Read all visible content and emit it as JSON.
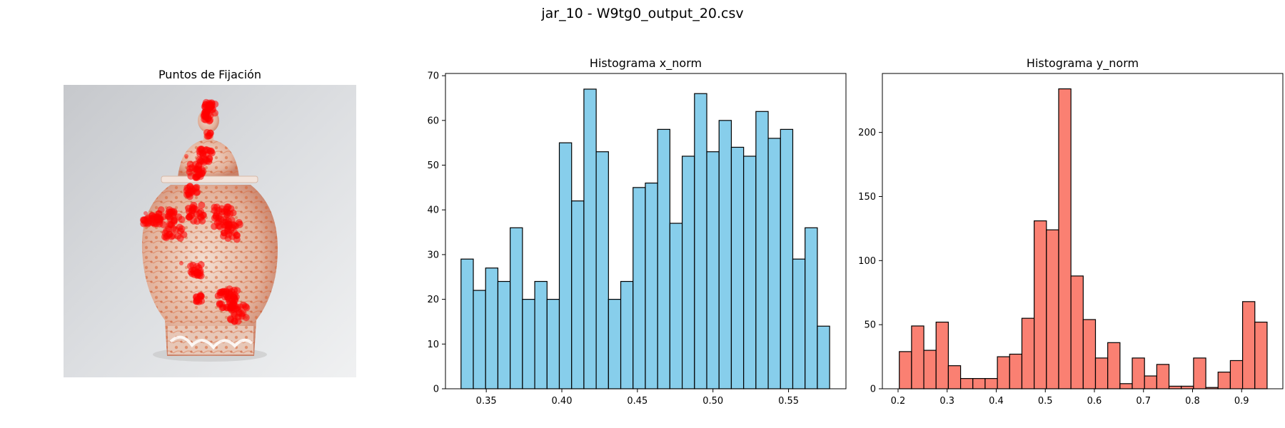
{
  "figure": {
    "suptitle": "jar_10 - W9tg0_output_20.csv"
  },
  "image_panel": {
    "title": "Puntos de Fijación",
    "fixation_color": "#ff0000",
    "jar_colors": {
      "background": "#d8dadd",
      "body": "#e9c6b4",
      "pattern": "#d9622f"
    }
  },
  "chart_data": [
    {
      "type": "bar",
      "title": "Histograma x_norm",
      "xlabel": "",
      "ylabel": "",
      "color": "#87ceeb",
      "edgecolor": "#000000",
      "xlim": [
        0.323,
        0.588
      ],
      "ylim": [
        0,
        70.5
      ],
      "bin_start": 0.3333,
      "bin_width": 0.00813,
      "values": [
        29,
        22,
        27,
        24,
        36,
        20,
        24,
        20,
        55,
        42,
        67,
        53,
        20,
        24,
        45,
        46,
        58,
        37,
        52,
        66,
        53,
        60,
        54,
        52,
        62,
        56,
        58,
        29,
        36,
        14
      ],
      "xticks": [
        0.35,
        0.4,
        0.45,
        0.5,
        0.55
      ],
      "xtick_labels": [
        "0.35",
        "0.40",
        "0.45",
        "0.50",
        "0.55"
      ],
      "yticks": [
        0,
        10,
        20,
        30,
        40,
        50,
        60,
        70
      ],
      "ytick_labels": [
        "0",
        "10",
        "20",
        "30",
        "40",
        "50",
        "60",
        "70"
      ]
    },
    {
      "type": "bar",
      "title": "Histograma y_norm",
      "xlabel": "",
      "ylabel": "",
      "color": "#fa8072",
      "edgecolor": "#000000",
      "xlim": [
        0.168,
        0.984
      ],
      "ylim": [
        0,
        246
      ],
      "bin_start": 0.2025,
      "bin_width": 0.02498,
      "values": [
        29,
        49,
        30,
        52,
        18,
        8,
        8,
        8,
        25,
        27,
        55,
        131,
        124,
        234,
        88,
        54,
        24,
        36,
        4,
        24,
        10,
        19,
        2,
        2,
        24,
        1,
        13,
        22,
        68,
        52
      ],
      "xticks": [
        0.2,
        0.3,
        0.4,
        0.5,
        0.6,
        0.7,
        0.8,
        0.9
      ],
      "xtick_labels": [
        "0.2",
        "0.3",
        "0.4",
        "0.5",
        "0.6",
        "0.7",
        "0.8",
        "0.9"
      ],
      "yticks": [
        0,
        50,
        100,
        150,
        200
      ],
      "ytick_labels": [
        "0",
        "50",
        "100",
        "150",
        "200"
      ]
    }
  ]
}
